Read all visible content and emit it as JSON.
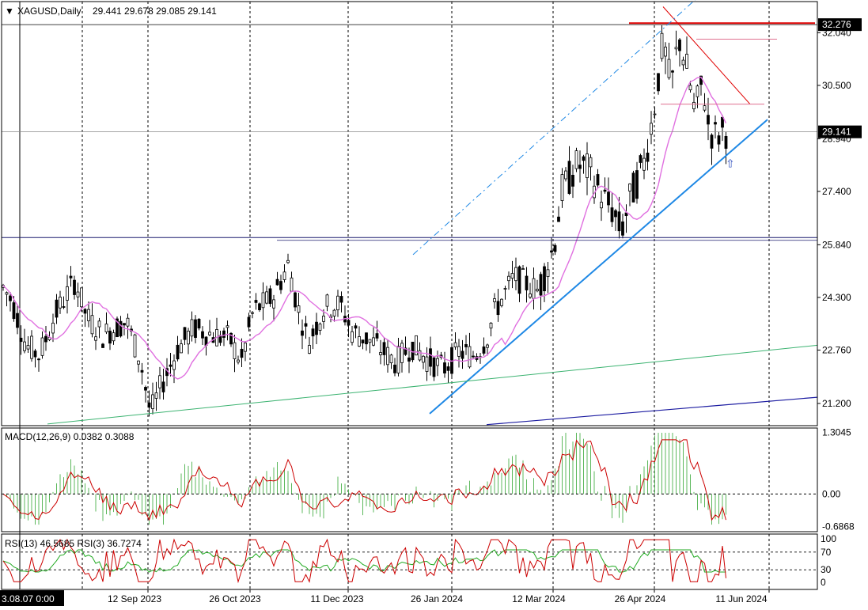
{
  "chart_data": {
    "type": "candlestick",
    "header": {
      "symbol": "XAGUSD,Daily",
      "ohlc": "29.441 29.678 29.085 29.141",
      "arrow_glyph": "▼"
    },
    "price_axis": {
      "ticks": [
        "32.040",
        "30.500",
        "28.940",
        "27.400",
        "25.840",
        "24.300",
        "22.760",
        "21.200"
      ],
      "range": [
        20.55,
        32.95
      ],
      "current_price_label": "29.141",
      "current_price": 29.141,
      "high_line_label": "32.276",
      "high_line": 32.276
    },
    "date_axis": {
      "first_label": "3.08.07 0:00",
      "labels": [
        "12 Sep 2023",
        "26 Oct 2023",
        "11 Dec 2023",
        "26 Jan 2024",
        "12 Mar 2024",
        "26 Apr 2024",
        "11 Jun 2024"
      ]
    },
    "colors": {
      "bull": "#000000",
      "bear": "#000000",
      "ma": "#e070e0",
      "trend_blue": "#1e88e5",
      "resistance_red": "#e00000",
      "green_line": "#3cb371",
      "navy_line": "#1a1aa0",
      "macd_hist": "#5cb85c",
      "macd_signal": "#cc0000",
      "rsi_fast": "#cc0000",
      "rsi_slow": "#22aa22"
    },
    "macd": {
      "label": "MACD(12,26,9) 0.0382 0.3088",
      "ticks": [
        "1.3045",
        "0.00",
        "-0.6868"
      ],
      "range": [
        -0.8,
        1.4
      ]
    },
    "rsi": {
      "label": "RSI(13) 46.5685  RSI(3) 36.7274",
      "ticks": [
        "100",
        "70",
        "30",
        "0"
      ]
    },
    "arrow_marker_glyph": "⇧"
  }
}
